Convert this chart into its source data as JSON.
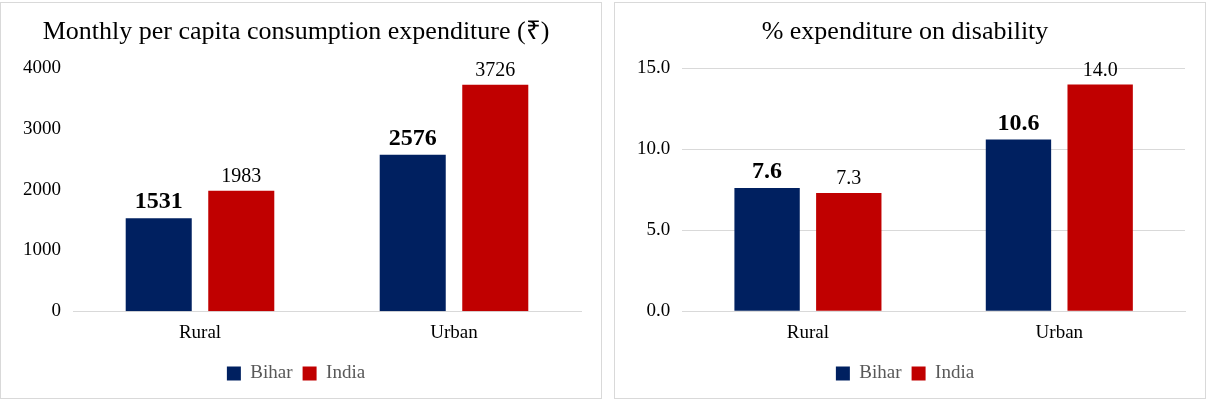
{
  "chart_data": [
    {
      "type": "bar",
      "title": "Monthly per capita consumption expenditure (₹)",
      "categories": [
        "Rural",
        "Urban"
      ],
      "series": [
        {
          "name": "Bihar",
          "color": "#002060",
          "values": [
            1531,
            2576
          ],
          "value_labels": [
            "1531",
            "2576"
          ]
        },
        {
          "name": "India",
          "color": "#c00000",
          "values": [
            1983,
            3726
          ],
          "value_labels": [
            "1983",
            "3726"
          ]
        }
      ],
      "ylim": [
        0,
        4000
      ],
      "yticks": [
        0,
        1000,
        2000,
        3000,
        4000
      ],
      "grid": false,
      "legend": "bottom"
    },
    {
      "type": "bar",
      "title": "% expenditure on disability",
      "categories": [
        "Rural",
        "Urban"
      ],
      "series": [
        {
          "name": "Bihar",
          "color": "#002060",
          "values": [
            7.6,
            10.6
          ],
          "value_labels": [
            "7.6",
            "10.6"
          ]
        },
        {
          "name": "India",
          "color": "#c00000",
          "values": [
            7.3,
            14.0
          ],
          "value_labels": [
            "7.3",
            "14.0"
          ]
        }
      ],
      "ylim": [
        0,
        15
      ],
      "yticks": [
        {
          "value": 0,
          "label": "0.0"
        },
        {
          "value": 5,
          "label": "5.0"
        },
        {
          "value": 10,
          "label": "10.0"
        },
        {
          "value": 15,
          "label": "15.0"
        }
      ],
      "grid": "y",
      "legend": "bottom"
    }
  ]
}
